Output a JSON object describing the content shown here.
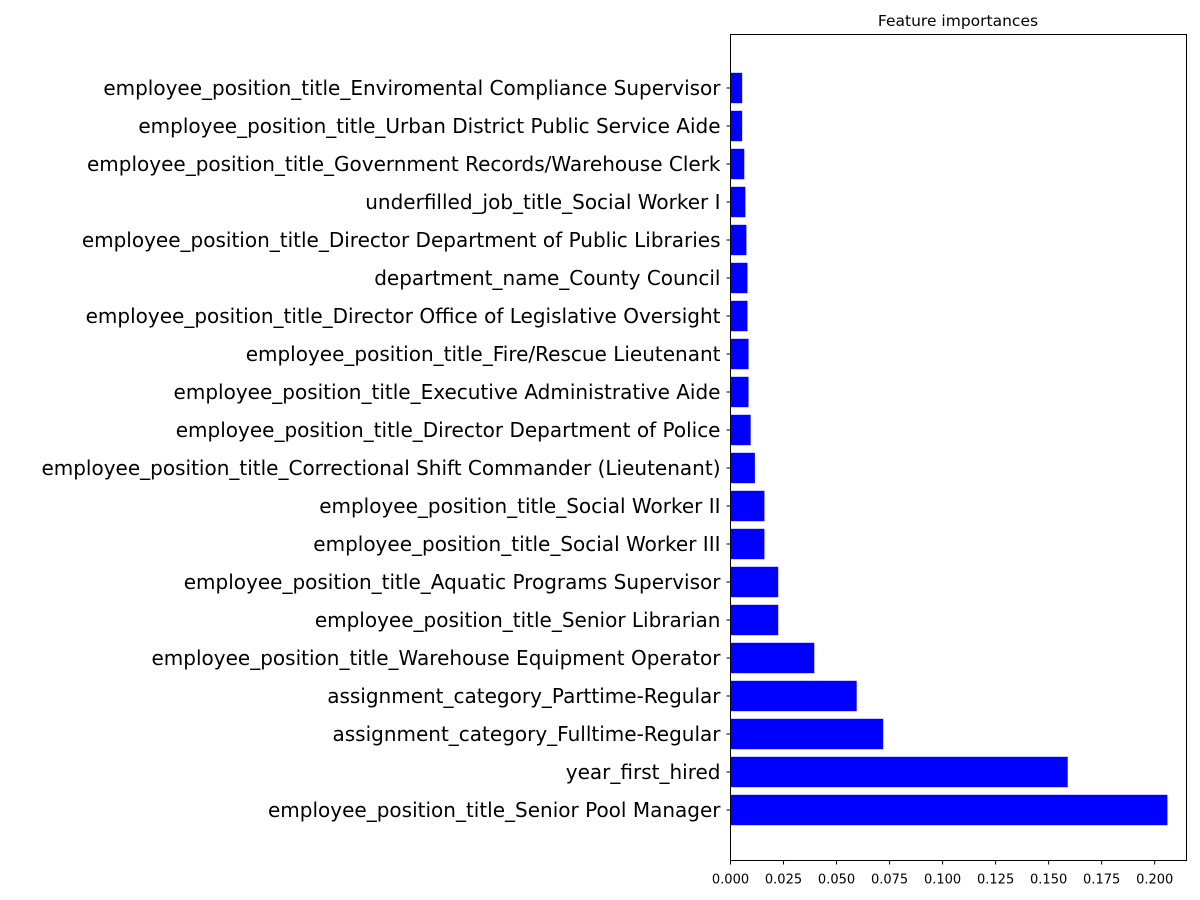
{
  "chart_data": {
    "type": "bar",
    "orientation": "horizontal",
    "title": "Feature importances",
    "xlabel": "",
    "ylabel": "",
    "color": "#0000ff",
    "xlim": [
      0,
      0.215
    ],
    "xticks": [
      "0.000",
      "0.025",
      "0.050",
      "0.075",
      "0.100",
      "0.125",
      "0.150",
      "0.175",
      "0.200"
    ],
    "grid": false,
    "categories": [
      "employee_position_title_Senior Pool Manager",
      "year_first_hired",
      "assignment_category_Fulltime-Regular",
      "assignment_category_Parttime-Regular",
      "employee_position_title_Warehouse Equipment Operator",
      "employee_position_title_Senior Librarian",
      "employee_position_title_Aquatic Programs Supervisor",
      "employee_position_title_Social Worker III",
      "employee_position_title_Social Worker II",
      "employee_position_title_Correctional Shift Commander (Lieutenant)",
      "employee_position_title_Director Department of Police",
      "employee_position_title_Executive Administrative Aide",
      "employee_position_title_Fire/Rescue Lieutenant",
      "employee_position_title_Director Office of Legislative Oversight",
      "department_name_County Council",
      "employee_position_title_Director Department of Public Libraries",
      "underfilled_job_title_Social Worker I",
      "employee_position_title_Government Records/Warehouse Clerk",
      "employee_position_title_Urban District Public Service Aide",
      "employee_position_title_Enviromental Compliance Supervisor"
    ],
    "values": [
      0.206,
      0.159,
      0.072,
      0.0595,
      0.0395,
      0.0225,
      0.0225,
      0.016,
      0.016,
      0.0115,
      0.0095,
      0.0085,
      0.0085,
      0.008,
      0.008,
      0.0075,
      0.007,
      0.0065,
      0.0055,
      0.0055
    ]
  }
}
